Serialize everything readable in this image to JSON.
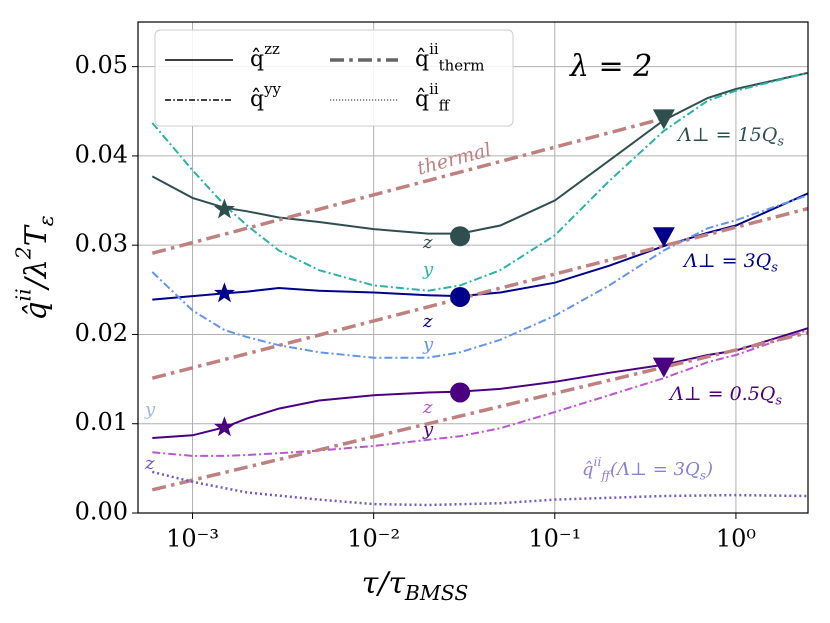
{
  "chart_data": {
    "type": "line",
    "xlabel": [
      {
        "text": "τ/τ"
      },
      {
        "text": "BMSS",
        "shift": "sub"
      }
    ],
    "ylabel": [
      {
        "text": "q̂"
      },
      {
        "text": "ii",
        "shift": "sup"
      },
      {
        "text": "/λ"
      },
      {
        "text": "2",
        "shift": "sup"
      },
      {
        "text": "T"
      },
      {
        "text": "ε",
        "shift": "sub"
      }
    ],
    "xscale": "log",
    "xlim": [
      0.0005,
      2.5
    ],
    "ylim": [
      0,
      0.055
    ],
    "xticks": [
      {
        "value": 0.001,
        "label": "10⁻³"
      },
      {
        "value": 0.01,
        "label": "10⁻²"
      },
      {
        "value": 0.1,
        "label": "10⁻¹"
      },
      {
        "value": 1,
        "label": "10⁰"
      }
    ],
    "yticks": [
      {
        "value": 0,
        "label": "0.00"
      },
      {
        "value": 0.01,
        "label": "0.01"
      },
      {
        "value": 0.02,
        "label": "0.02"
      },
      {
        "value": 0.03,
        "label": "0.03"
      },
      {
        "value": 0.04,
        "label": "0.04"
      },
      {
        "value": 0.05,
        "label": "0.05"
      }
    ],
    "grid": true,
    "legend": [
      {
        "label": [
          {
            "text": "q̂"
          },
          {
            "text": "zz",
            "shift": "sup"
          }
        ],
        "style": "solid",
        "color": "#000000",
        "width": 1.5
      },
      {
        "label": [
          {
            "text": "q̂"
          },
          {
            "text": "yy",
            "shift": "sup"
          }
        ],
        "style": "dashdot",
        "color": "#000000",
        "width": 1.5
      },
      {
        "label": [
          {
            "text": "q̂"
          },
          {
            "text": "ii",
            "shift": "sup"
          },
          {
            "text": "therm",
            "shift": "sub"
          }
        ],
        "style": "dashdot",
        "color": "#666666",
        "width": 3.5
      },
      {
        "label": [
          {
            "text": "q̂"
          },
          {
            "text": "ii",
            "shift": "sup"
          },
          {
            "text": "ff",
            "shift": "sub"
          }
        ],
        "style": "dotted",
        "color": "#666666",
        "width": 1.5
      }
    ],
    "series": [
      {
        "color": "#2f4f4f",
        "style": "solid",
        "width": 2,
        "x": [
          0.0006,
          0.001,
          0.0015,
          0.002,
          0.003,
          0.005,
          0.01,
          0.02,
          0.03,
          0.05,
          0.1,
          0.2,
          0.4,
          0.7,
          1,
          2.5
        ],
        "values": [
          0.0377,
          0.0353,
          0.0342,
          0.0338,
          0.0331,
          0.0326,
          0.0318,
          0.0313,
          0.0313,
          0.0322,
          0.035,
          0.0395,
          0.044,
          0.0465,
          0.0475,
          0.0493
        ]
      },
      {
        "color": "#2ab3a6",
        "style": "dashdot",
        "width": 2,
        "x": [
          0.0006,
          0.001,
          0.0015,
          0.002,
          0.003,
          0.005,
          0.01,
          0.02,
          0.03,
          0.05,
          0.1,
          0.2,
          0.4,
          0.7,
          1,
          2.5
        ],
        "values": [
          0.0437,
          0.0384,
          0.0345,
          0.0322,
          0.0294,
          0.0272,
          0.0255,
          0.0249,
          0.0255,
          0.0272,
          0.0311,
          0.0372,
          0.0428,
          0.0462,
          0.0473,
          0.0493
        ]
      },
      {
        "color": "#00008b",
        "style": "solid",
        "width": 2,
        "x": [
          0.0006,
          0.001,
          0.0015,
          0.002,
          0.003,
          0.005,
          0.01,
          0.02,
          0.03,
          0.05,
          0.1,
          0.2,
          0.4,
          0.7,
          1,
          2.5
        ],
        "values": [
          0.0239,
          0.0243,
          0.0246,
          0.0248,
          0.0252,
          0.0249,
          0.0247,
          0.0244,
          0.0243,
          0.0247,
          0.0258,
          0.0277,
          0.0299,
          0.0314,
          0.0322,
          0.0358
        ]
      },
      {
        "color": "#6495ed",
        "style": "dashdot",
        "width": 2,
        "x": [
          0.0006,
          0.001,
          0.0015,
          0.002,
          0.003,
          0.005,
          0.01,
          0.02,
          0.03,
          0.05,
          0.1,
          0.2,
          0.4,
          0.7,
          1,
          2.5
        ],
        "values": [
          0.027,
          0.0227,
          0.0205,
          0.0197,
          0.0188,
          0.018,
          0.0174,
          0.0174,
          0.018,
          0.0194,
          0.0221,
          0.0255,
          0.0294,
          0.0319,
          0.0328,
          0.0356
        ]
      },
      {
        "color": "#4b0082",
        "style": "solid",
        "width": 2,
        "x": [
          0.0006,
          0.001,
          0.0015,
          0.002,
          0.003,
          0.005,
          0.01,
          0.02,
          0.03,
          0.05,
          0.1,
          0.2,
          0.4,
          0.7,
          1,
          2.5
        ],
        "values": [
          0.0084,
          0.0087,
          0.0096,
          0.0106,
          0.0117,
          0.0126,
          0.0132,
          0.0135,
          0.0136,
          0.0139,
          0.0147,
          0.0157,
          0.0166,
          0.0177,
          0.0182,
          0.0207
        ]
      },
      {
        "color": "#ba55d3",
        "style": "dashdot",
        "width": 2,
        "x": [
          0.0006,
          0.001,
          0.0015,
          0.002,
          0.003,
          0.005,
          0.01,
          0.02,
          0.03,
          0.05,
          0.1,
          0.2,
          0.4,
          0.7,
          1,
          2.5
        ],
        "values": [
          0.0068,
          0.0064,
          0.0064,
          0.0065,
          0.0067,
          0.007,
          0.0075,
          0.0082,
          0.0086,
          0.0095,
          0.0113,
          0.0132,
          0.0151,
          0.0169,
          0.0177,
          0.0205
        ]
      },
      {
        "color": "#c08080",
        "style": "dashdot",
        "width": 3.5,
        "x": [
          0.0006,
          0.4
        ],
        "values": [
          0.0291,
          0.0442
        ]
      },
      {
        "color": "#c08080",
        "style": "dashdot",
        "width": 3.5,
        "x": [
          0.0006,
          2.5
        ],
        "values": [
          0.0151,
          0.0341
        ]
      },
      {
        "color": "#c08080",
        "style": "dashdot",
        "width": 3.5,
        "x": [
          0.0006,
          2.5
        ],
        "values": [
          0.0026,
          0.0202
        ]
      },
      {
        "color": "#6a5acd",
        "style": "dotted",
        "width": 2.5,
        "x": [
          0.0006,
          0.001,
          0.002,
          0.005,
          0.01,
          0.02,
          0.05,
          0.1,
          0.2,
          0.4,
          1,
          2.5
        ],
        "values": [
          0.0046,
          0.0035,
          0.0023,
          0.0015,
          0.001,
          0.0009,
          0.0011,
          0.0015,
          0.0017,
          0.0019,
          0.002,
          0.0019
        ]
      }
    ],
    "markers": [
      {
        "shape": "star",
        "color": "#2f4f4f",
        "x": 0.0015,
        "value": 0.034
      },
      {
        "shape": "star",
        "color": "#00008b",
        "x": 0.0015,
        "value": 0.0246
      },
      {
        "shape": "star",
        "color": "#4b0082",
        "x": 0.0015,
        "value": 0.0096
      },
      {
        "shape": "circle",
        "color": "#2f4f4f",
        "x": 0.03,
        "value": 0.031
      },
      {
        "shape": "circle",
        "color": "#00008b",
        "x": 0.03,
        "value": 0.0242
      },
      {
        "shape": "circle",
        "color": "#4b0082",
        "x": 0.03,
        "value": 0.0135
      },
      {
        "shape": "triangle",
        "color": "#2f4f4f",
        "x": 0.4,
        "value": 0.0442
      },
      {
        "shape": "triangle",
        "color": "#00008b",
        "x": 0.4,
        "value": 0.031
      },
      {
        "shape": "triangle",
        "color": "#4b0082",
        "x": 0.4,
        "value": 0.0164
      }
    ],
    "annotations": [
      {
        "text": [
          {
            "text": "λ = 2"
          }
        ],
        "color": "#000000"
      },
      {
        "text": [
          {
            "text": "thermal"
          }
        ],
        "color": "#c08080"
      },
      {
        "text": [
          {
            "text": "Λ⊥ = 15Q"
          },
          {
            "text": "s",
            "shift": "sub"
          }
        ],
        "color": "#2f4f4f"
      },
      {
        "text": [
          {
            "text": "Λ⊥ = 3Q"
          },
          {
            "text": "s",
            "shift": "sub"
          }
        ],
        "color": "#00008b"
      },
      {
        "text": [
          {
            "text": "Λ⊥ = 0.5Q"
          },
          {
            "text": "s",
            "shift": "sub"
          }
        ],
        "color": "#4b0082"
      },
      {
        "text": [
          {
            "text": "q̂"
          },
          {
            "text": "ii",
            "shift": "sup"
          },
          {
            "text": "ff",
            "shift": "sub"
          },
          {
            "text": "(Λ⊥ = 3Q"
          },
          {
            "text": "s",
            "shift": "sub"
          },
          {
            "text": ")"
          }
        ],
        "color": "#8a80d8"
      },
      {
        "text": [
          {
            "text": "z"
          }
        ],
        "color": "#2f4f4f"
      },
      {
        "text": [
          {
            "text": "y"
          }
        ],
        "color": "#2ab3a6"
      },
      {
        "text": [
          {
            "text": "z"
          }
        ],
        "color": "#00008b"
      },
      {
        "text": [
          {
            "text": "y"
          }
        ],
        "color": "#6495ed"
      },
      {
        "text": [
          {
            "text": "z"
          }
        ],
        "color": "#ba55d3"
      },
      {
        "text": [
          {
            "text": "y"
          }
        ],
        "color": "#4b0082"
      },
      {
        "text": [
          {
            "text": "y"
          }
        ],
        "color": "#a0b8e8"
      },
      {
        "text": [
          {
            "text": "z"
          }
        ],
        "color": "#6a5acd"
      }
    ]
  }
}
